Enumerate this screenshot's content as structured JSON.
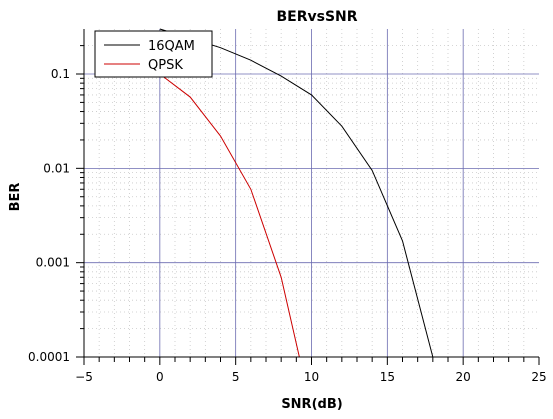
{
  "chart_data": {
    "type": "line",
    "title": "BERvsSNR",
    "xlabel": "SNR(dB)",
    "ylabel": "BER",
    "xscale": "linear",
    "yscale": "log",
    "xlim": [
      -5,
      25
    ],
    "ylim": [
      0.0001,
      0.3
    ],
    "x_ticks": [
      -5,
      0,
      5,
      10,
      15,
      20,
      25
    ],
    "x_tick_labels": [
      "−5",
      "0",
      "5",
      "10",
      "15",
      "20",
      "25"
    ],
    "y_ticks": [
      0.0001,
      0.001,
      0.01,
      0.1
    ],
    "y_tick_labels": [
      "0.0001",
      "0.001",
      "0.01",
      "0.1"
    ],
    "grid": true,
    "legend_position": "top-left",
    "series": [
      {
        "name": "16QAM",
        "color": "#000000",
        "x": [
          0,
          2,
          4,
          6,
          8,
          10,
          12,
          14,
          16,
          18
        ],
        "y": [
          0.3,
          0.24,
          0.19,
          0.14,
          0.095,
          0.06,
          0.028,
          0.0095,
          0.0017,
          0.0001
        ]
      },
      {
        "name": "QPSK",
        "color": "#cc0000",
        "x": [
          0,
          2,
          4,
          6,
          8,
          9.2
        ],
        "y": [
          0.1,
          0.057,
          0.022,
          0.006,
          0.0007,
          0.0001
        ]
      }
    ]
  }
}
